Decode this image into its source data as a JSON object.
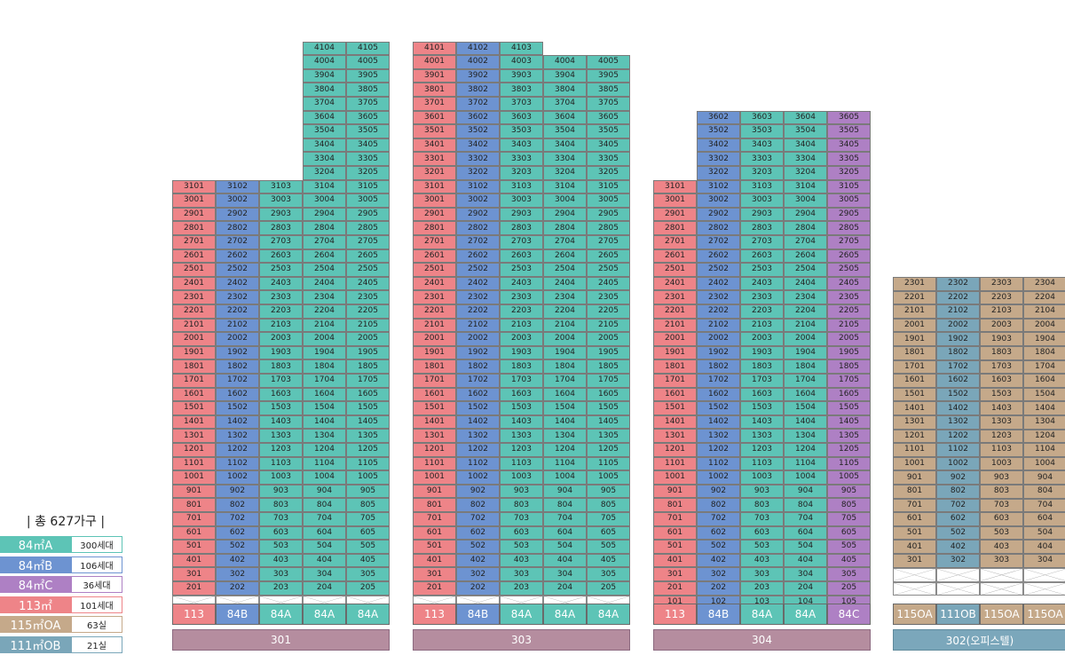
{
  "colors": {
    "84A": "#5dc4b6",
    "84B": "#6d93d1",
    "84C": "#ae80c4",
    "113": "#ee8488",
    "115OA": "#c5a98a",
    "111OB": "#7aa6b9",
    "building_label": "#b58d9f",
    "building_label_office": "#7ba7bb"
  },
  "legend": {
    "title": "| 총 627가구 |",
    "items": [
      {
        "type": "84A",
        "label": "84㎡A",
        "value": "300세대"
      },
      {
        "type": "84B",
        "label": "84㎡B",
        "value": "106세대"
      },
      {
        "type": "84C",
        "label": "84㎡C",
        "value": "36세대"
      },
      {
        "type": "113",
        "label": "113㎡",
        "value": "101세대"
      },
      {
        "type": "115OA",
        "label": "115㎡OA",
        "value": "63실"
      },
      {
        "type": "111OB",
        "label": "111㎡OB",
        "value": "21실"
      }
    ]
  },
  "buildings": [
    {
      "name": "301",
      "columns": [
        {
          "line": "01",
          "type": "113",
          "label": "113",
          "floors": [
            2,
            31
          ]
        },
        {
          "line": "02",
          "type": "84B",
          "label": "84B",
          "floors": [
            2,
            31
          ]
        },
        {
          "line": "03",
          "type": "84A",
          "label": "84A",
          "floors": [
            2,
            31
          ]
        },
        {
          "line": "04",
          "type": "84A",
          "label": "84A",
          "floors": [
            2,
            41
          ]
        },
        {
          "line": "05",
          "type": "84A",
          "label": "84A",
          "floors": [
            2,
            41
          ]
        }
      ],
      "pilotis": true
    },
    {
      "name": "303",
      "columns": [
        {
          "line": "01",
          "type": "113",
          "label": "113",
          "floors": [
            2,
            41
          ]
        },
        {
          "line": "02",
          "type": "84B",
          "label": "84B",
          "floors": [
            2,
            41
          ]
        },
        {
          "line": "03",
          "type": "84A",
          "label": "84A",
          "floors": [
            2,
            41
          ]
        },
        {
          "line": "04",
          "type": "84A",
          "label": "84A",
          "floors": [
            2,
            40
          ]
        },
        {
          "line": "05",
          "type": "84A",
          "label": "84A",
          "floors": [
            2,
            40
          ]
        }
      ],
      "pilotis": true
    },
    {
      "name": "304",
      "columns": [
        {
          "line": "01",
          "type": "113",
          "label": "113",
          "floors": [
            1,
            31
          ]
        },
        {
          "line": "02",
          "type": "84B",
          "label": "84B",
          "floors": [
            1,
            36
          ]
        },
        {
          "line": "03",
          "type": "84A",
          "label": "84A",
          "floors": [
            1,
            36
          ]
        },
        {
          "line": "04",
          "type": "84A",
          "label": "84A",
          "floors": [
            1,
            36
          ]
        },
        {
          "line": "05",
          "type": "84C",
          "label": "84C",
          "floors": [
            1,
            36
          ]
        }
      ],
      "pilotis": false
    },
    {
      "name": "302(오피스텔)",
      "columns": [
        {
          "line": "01",
          "type": "115OA",
          "label": "115OA",
          "floors": [
            3,
            23
          ]
        },
        {
          "line": "02",
          "type": "111OB",
          "label": "111OB",
          "floors": [
            3,
            23
          ]
        },
        {
          "line": "03",
          "type": "115OA",
          "label": "115OA",
          "floors": [
            3,
            23
          ]
        },
        {
          "line": "04",
          "type": "115OA",
          "label": "115OA",
          "floors": [
            3,
            23
          ]
        }
      ],
      "pilotis": true,
      "pilotis_rows": 2,
      "office": true
    }
  ]
}
